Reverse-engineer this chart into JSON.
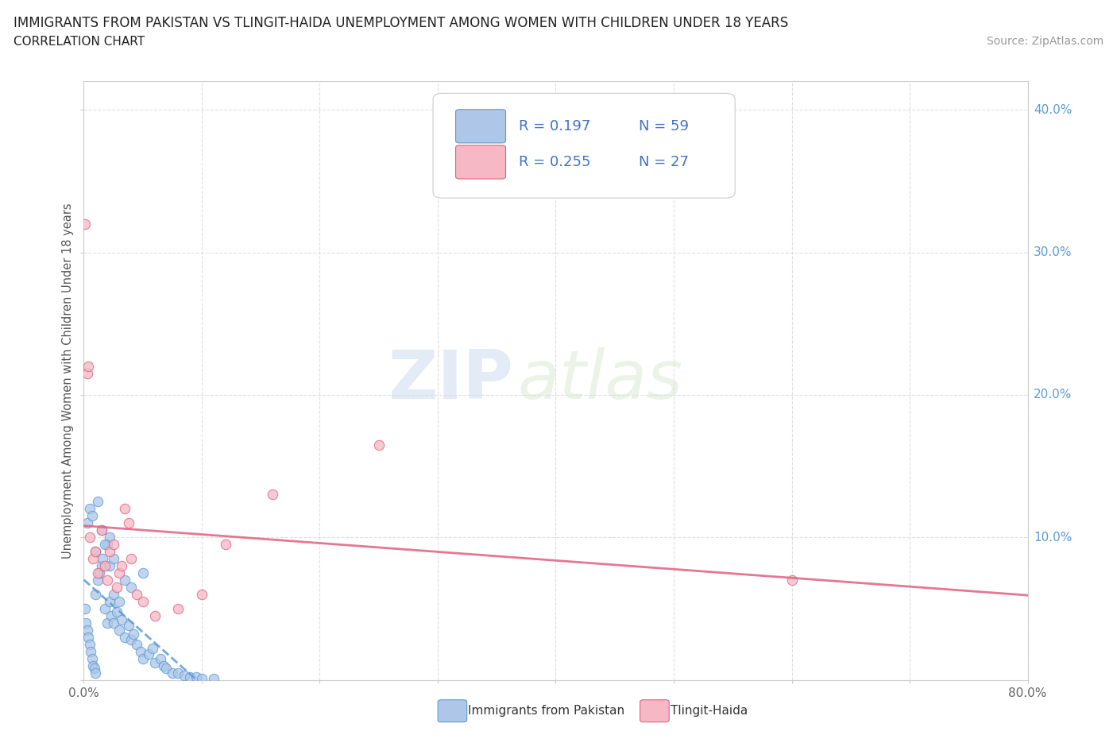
{
  "title": "IMMIGRANTS FROM PAKISTAN VS TLINGIT-HAIDA UNEMPLOYMENT AMONG WOMEN WITH CHILDREN UNDER 18 YEARS",
  "subtitle": "CORRELATION CHART",
  "source": "Source: ZipAtlas.com",
  "ylabel": "Unemployment Among Women with Children Under 18 years",
  "xlim": [
    0.0,
    0.8
  ],
  "ylim": [
    0.0,
    0.42
  ],
  "xticks": [
    0.0,
    0.1,
    0.2,
    0.3,
    0.4,
    0.5,
    0.6,
    0.7,
    0.8
  ],
  "yticks": [
    0.0,
    0.1,
    0.2,
    0.3,
    0.4
  ],
  "blue_fill": "#aec6e8",
  "blue_edge": "#5b9bd5",
  "pink_fill": "#f5b8c4",
  "pink_edge": "#e06080",
  "blue_trend_color": "#5b9bd5",
  "pink_trend_color": "#e06080",
  "legend_R1": "0.197",
  "legend_N1": "59",
  "legend_R2": "0.255",
  "legend_N2": "27",
  "text_blue": "#4472c4",
  "blue_scatter_x": [
    0.001,
    0.002,
    0.003,
    0.004,
    0.005,
    0.006,
    0.007,
    0.008,
    0.009,
    0.01,
    0.01,
    0.012,
    0.013,
    0.015,
    0.016,
    0.018,
    0.02,
    0.02,
    0.022,
    0.022,
    0.023,
    0.025,
    0.025,
    0.028,
    0.03,
    0.03,
    0.032,
    0.035,
    0.035,
    0.038,
    0.04,
    0.04,
    0.042,
    0.045,
    0.048,
    0.05,
    0.05,
    0.055,
    0.058,
    0.06,
    0.065,
    0.068,
    0.07,
    0.075,
    0.08,
    0.085,
    0.09,
    0.095,
    0.1,
    0.11,
    0.003,
    0.005,
    0.007,
    0.01,
    0.012,
    0.015,
    0.018,
    0.022,
    0.025
  ],
  "blue_scatter_y": [
    0.05,
    0.04,
    0.035,
    0.03,
    0.025,
    0.02,
    0.015,
    0.01,
    0.008,
    0.005,
    0.06,
    0.07,
    0.075,
    0.08,
    0.085,
    0.05,
    0.04,
    0.095,
    0.055,
    0.1,
    0.045,
    0.06,
    0.04,
    0.048,
    0.035,
    0.055,
    0.042,
    0.03,
    0.07,
    0.038,
    0.028,
    0.065,
    0.032,
    0.025,
    0.02,
    0.015,
    0.075,
    0.018,
    0.022,
    0.012,
    0.015,
    0.01,
    0.008,
    0.005,
    0.005,
    0.003,
    0.002,
    0.002,
    0.001,
    0.001,
    0.11,
    0.12,
    0.115,
    0.09,
    0.125,
    0.105,
    0.095,
    0.08,
    0.085
  ],
  "pink_scatter_x": [
    0.001,
    0.003,
    0.004,
    0.005,
    0.008,
    0.01,
    0.012,
    0.015,
    0.018,
    0.02,
    0.022,
    0.025,
    0.028,
    0.03,
    0.032,
    0.035,
    0.038,
    0.04,
    0.045,
    0.05,
    0.06,
    0.08,
    0.1,
    0.12,
    0.16,
    0.25,
    0.6
  ],
  "pink_scatter_y": [
    0.32,
    0.215,
    0.22,
    0.1,
    0.085,
    0.09,
    0.075,
    0.105,
    0.08,
    0.07,
    0.09,
    0.095,
    0.065,
    0.075,
    0.08,
    0.12,
    0.11,
    0.085,
    0.06,
    0.055,
    0.045,
    0.05,
    0.06,
    0.095,
    0.13,
    0.165,
    0.07
  ],
  "watermark_zip": "ZIP",
  "watermark_atlas": "atlas",
  "background_color": "#ffffff",
  "grid_color": "#d8d8d8"
}
